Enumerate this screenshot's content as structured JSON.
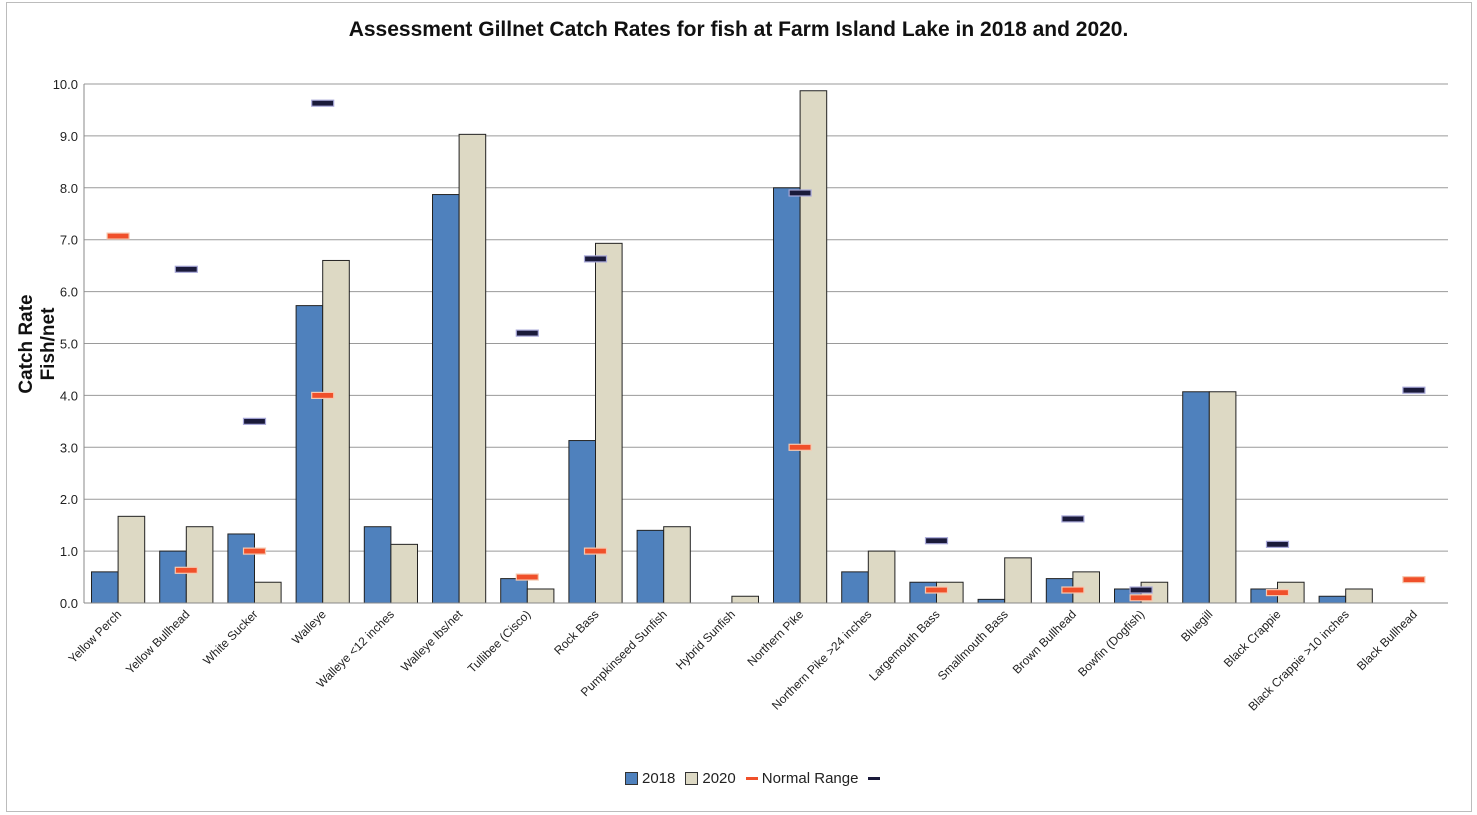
{
  "chart_data": {
    "type": "bar",
    "title": "Assessment Gillnet Catch Rates for fish at Farm Island Lake in 2018 and 2020.",
    "ylabel": "Catch Rate\nFish/net",
    "ylim": [
      0,
      10
    ],
    "yticks": [
      "0.0",
      "1.0",
      "2.0",
      "3.0",
      "4.0",
      "5.0",
      "6.0",
      "7.0",
      "8.0",
      "9.0",
      "10.0"
    ],
    "grid": true,
    "legend_position": "bottom",
    "categories": [
      "Yellow Perch",
      "Yellow Bullhead",
      "White Sucker",
      "Walleye",
      "Walleye <12 inches",
      "Walleye lbs/net",
      "Tullibee (Cisco)",
      "Rock Bass",
      "Pumpkinseed Sunfish",
      "Hybrid Sunfish",
      "Northern Pike",
      "Northern Pike >24 inches",
      "Largemouth Bass",
      "Smallmouth Bass",
      "Brown Bullhead",
      "Bowfin (Dogfish)",
      "Bluegill",
      "Black Crappie",
      "Black Crappie >10 inches",
      "Black Bullhead"
    ],
    "series": [
      {
        "name": "2018",
        "color": "#4f81bd",
        "values": [
          0.6,
          1.0,
          1.33,
          5.73,
          1.47,
          7.87,
          0.47,
          3.13,
          1.4,
          0,
          8.0,
          0.6,
          0.4,
          0.07,
          0.47,
          0.27,
          4.07,
          0.27,
          0.13,
          0
        ]
      },
      {
        "name": "2020",
        "color": "#ddd9c4",
        "values": [
          1.67,
          1.47,
          0.4,
          6.6,
          1.13,
          9.03,
          0.27,
          6.93,
          1.47,
          0.13,
          9.87,
          1.0,
          0.4,
          0.87,
          0.6,
          0.4,
          4.07,
          0.4,
          0.27,
          0
        ]
      }
    ],
    "range_low": {
      "name": "Normal Range",
      "color": "#f0502a",
      "values": [
        7.07,
        0.63,
        1.0,
        4.0,
        null,
        null,
        0.5,
        1.0,
        null,
        null,
        3.0,
        null,
        0.25,
        null,
        0.25,
        0.1,
        null,
        0.2,
        null,
        0.45
      ]
    },
    "range_high": {
      "name": "",
      "color": "#1a1a3a",
      "values": [
        null,
        6.43,
        3.5,
        9.63,
        null,
        null,
        5.2,
        6.63,
        null,
        null,
        7.9,
        null,
        1.2,
        null,
        1.62,
        0.25,
        null,
        1.13,
        null,
        4.1
      ]
    }
  }
}
